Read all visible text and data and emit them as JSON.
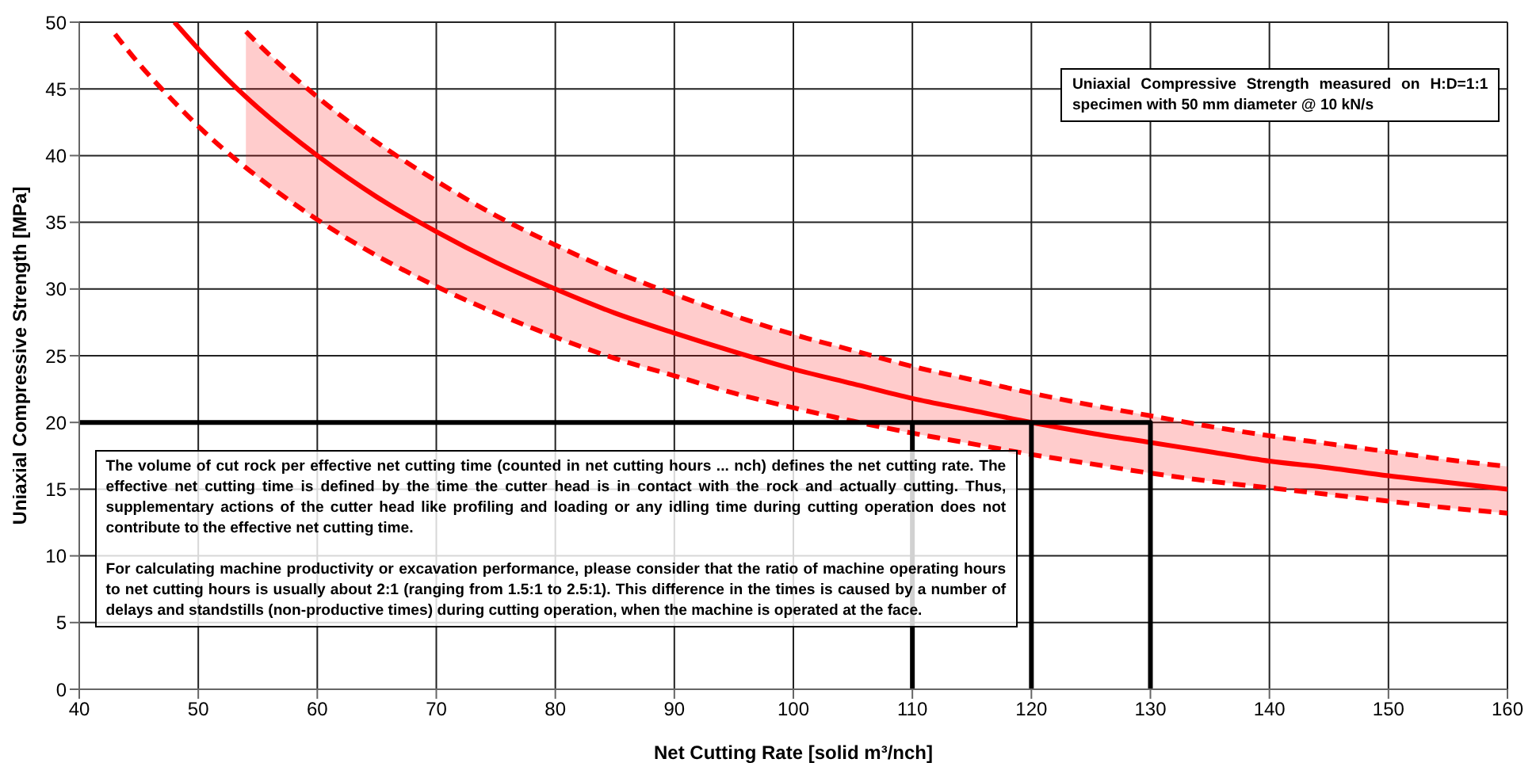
{
  "chart_data": {
    "type": "line",
    "xlabel": "Net Cutting Rate [solid m³/nch]",
    "ylabel": "Uniaxial Compressive Strength [MPa]",
    "xlim": [
      40,
      160
    ],
    "xticks": [
      40,
      50,
      60,
      70,
      80,
      90,
      100,
      110,
      120,
      130,
      140,
      150,
      160
    ],
    "ylim": [
      0,
      50
    ],
    "yticks": [
      0,
      5,
      10,
      15,
      20,
      25,
      30,
      35,
      40,
      45,
      50
    ],
    "grid": true,
    "annotations": [
      "Uniaxial Compressive Strength measured on H:D=1:1 specimen with 50 mm diameter @ 10 kN/s",
      "The volume of cut rock per effective net cutting time (counted in net cutting hours ... nch) defines the net cutting rate. The effective net cutting time is defined by the time the cutter head is in contact with the rock and actually cutting. Thus, supplementary actions of the cutter head like profiling and loading or any idling time during cutting operation does not contribute to the effective net cutting time.\n\nFor calculating machine productivity or excavation performance, please consider that the ratio of machine operating hours to net cutting hours is usually about 2:1 (ranging from 1.5:1 to 2.5:1). This difference in the times is caused by a number of delays and standstills (non-productive times) during cutting operation, when the machine is operated at the face."
    ],
    "series": [
      {
        "color": "#ff0000",
        "x": [
          48,
          50,
          54,
          55,
          60,
          65,
          70,
          75,
          80,
          85,
          90,
          95,
          100,
          105,
          110,
          115,
          120,
          125,
          130,
          135,
          140,
          145,
          150,
          155,
          160
        ],
        "values": [
          50,
          48,
          44.4,
          43.6,
          40,
          36.9,
          34.3,
          32,
          30,
          28.2,
          26.7,
          25.3,
          24,
          22.9,
          21.8,
          20.9,
          20,
          19.2,
          18.5,
          17.8,
          17.1,
          16.6,
          16,
          15.5,
          15
        ],
        "lower": [
          null,
          null,
          39.1,
          38.4,
          35.2,
          32.5,
          30.2,
          28.2,
          26.4,
          24.8,
          23.5,
          22.2,
          21.1,
          20.1,
          19.2,
          18.4,
          17.6,
          16.9,
          16.2,
          15.6,
          15.1,
          14.6,
          14.1,
          13.6,
          13.2
        ],
        "upper": [
          null,
          null,
          49.3,
          48.4,
          44.4,
          41,
          38.1,
          35.5,
          33.3,
          31.3,
          29.6,
          28,
          26.6,
          25.4,
          24.2,
          23.2,
          22.2,
          21.3,
          20.5,
          19.7,
          19,
          18.4,
          17.8,
          17.2,
          16.7
        ]
      },
      {
        "color": "#ff0000",
        "line_style": "dashed",
        "x": [
          54,
          55,
          60,
          65,
          70,
          75,
          80,
          85,
          90,
          95,
          100,
          105,
          110,
          115,
          120,
          125,
          130,
          135,
          140,
          145,
          150,
          155,
          160
        ],
        "values": [
          49.3,
          48.4,
          44.4,
          41,
          38.1,
          35.5,
          33.3,
          31.3,
          29.6,
          28,
          26.6,
          25.4,
          24.2,
          23.2,
          22.2,
          21.3,
          20.5,
          19.7,
          19,
          18.4,
          17.8,
          17.2,
          16.7
        ]
      },
      {
        "color": "#ff0000",
        "line_style": "dashed",
        "x": [
          43,
          45,
          48,
          50,
          54,
          55,
          60,
          65,
          70,
          75,
          80,
          85,
          90,
          95,
          100,
          105,
          110,
          115,
          120,
          125,
          130,
          135,
          140,
          145,
          150,
          155,
          160
        ],
        "values": [
          49.1,
          46.9,
          44,
          42.2,
          39.1,
          38.4,
          35.2,
          32.5,
          30.2,
          28.2,
          26.4,
          24.8,
          23.5,
          22.2,
          21.1,
          20.1,
          19.2,
          18.4,
          17.6,
          16.9,
          16.2,
          15.6,
          15.1,
          14.6,
          14.1,
          13.6,
          13.2
        ]
      },
      {
        "color": "#000000",
        "x": [
          40,
          110,
          110,
          110,
          120,
          120,
          120,
          130,
          130
        ],
        "values": [
          20,
          20,
          0,
          20,
          20,
          0,
          20,
          20,
          0
        ]
      }
    ]
  }
}
